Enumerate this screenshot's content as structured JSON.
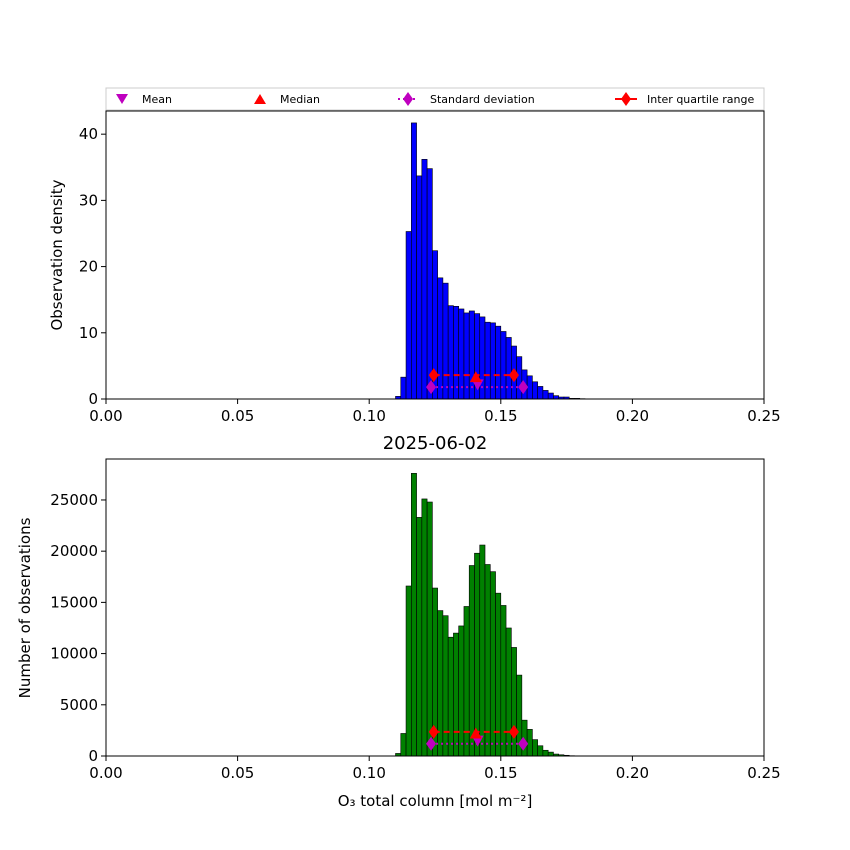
{
  "legend": {
    "mean": "Mean",
    "median": "Median",
    "std": "Standard deviation",
    "iqr": "Inter quartile range"
  },
  "colors": {
    "density_bar": "#0000ff",
    "count_bar": "#008000",
    "mean_marker": "#bf00bf",
    "median_marker": "#ff0000",
    "std_line": "#bf00bf",
    "iqr_line": "#ff0000"
  },
  "chart_data": [
    {
      "type": "bar",
      "histogram": true,
      "title": "",
      "xlabel": "",
      "ylabel": "Observation density",
      "xlim": [
        0,
        0.25
      ],
      "ylim": [
        0,
        43.5
      ],
      "xticks": [
        "0.00",
        "0.05",
        "0.10",
        "0.15",
        "0.20",
        "0.25"
      ],
      "xtick_values": [
        0,
        0.05,
        0.1,
        0.15,
        0.2,
        0.25
      ],
      "yticks": [
        0,
        10,
        20,
        30,
        40
      ],
      "bin_start": 0.11,
      "bin_width": 0.002,
      "values": [
        0.4,
        3.3,
        25.3,
        41.7,
        33.7,
        36.2,
        34.8,
        22.4,
        18.3,
        17.5,
        14.1,
        14.0,
        13.6,
        13.0,
        13.3,
        12.9,
        12.4,
        11.6,
        11.5,
        11.0,
        10.2,
        9.3,
        8.0,
        6.4,
        4.4,
        3.5,
        2.6,
        1.9,
        1.3,
        0.9,
        0.5,
        0.3,
        0.3,
        0.1,
        0.1,
        0.05
      ],
      "stats": {
        "mean": {
          "x": 0.1412,
          "y": 2.2
        },
        "median": {
          "x": 0.1405,
          "y": 3.3
        },
        "std": {
          "x_low": 0.1235,
          "x_high": 0.1585,
          "y": 1.8
        },
        "iqr": {
          "x_low": 0.1245,
          "x_high": 0.155,
          "y": 3.6
        }
      }
    },
    {
      "type": "bar",
      "histogram": true,
      "title": "2025-06-02",
      "xlabel": "O₃ total column [mol m⁻²]",
      "ylabel": "Number of observations",
      "xlim": [
        0,
        0.25
      ],
      "ylim": [
        0,
        29000
      ],
      "xticks": [
        "0.00",
        "0.05",
        "0.10",
        "0.15",
        "0.20",
        "0.25"
      ],
      "xtick_values": [
        0,
        0.05,
        0.1,
        0.15,
        0.2,
        0.25
      ],
      "yticks": [
        0,
        5000,
        10000,
        15000,
        20000,
        25000
      ],
      "bin_start": 0.11,
      "bin_width": 0.002,
      "values": [
        250,
        2200,
        16600,
        27600,
        23300,
        25100,
        24800,
        16400,
        14200,
        13700,
        11600,
        12000,
        12700,
        14600,
        18600,
        19800,
        20600,
        18700,
        18000,
        15900,
        14700,
        12500,
        10600,
        7900,
        3500,
        2600,
        1600,
        1000,
        560,
        380,
        190,
        120,
        70,
        30,
        20,
        10
      ],
      "stats": {
        "mean": {
          "x": 0.1412,
          "y": 1500
        },
        "median": {
          "x": 0.1405,
          "y": 2200
        },
        "std": {
          "x_low": 0.1235,
          "x_high": 0.1585,
          "y": 1200
        },
        "iqr": {
          "x_low": 0.1245,
          "x_high": 0.155,
          "y": 2350
        }
      }
    }
  ]
}
